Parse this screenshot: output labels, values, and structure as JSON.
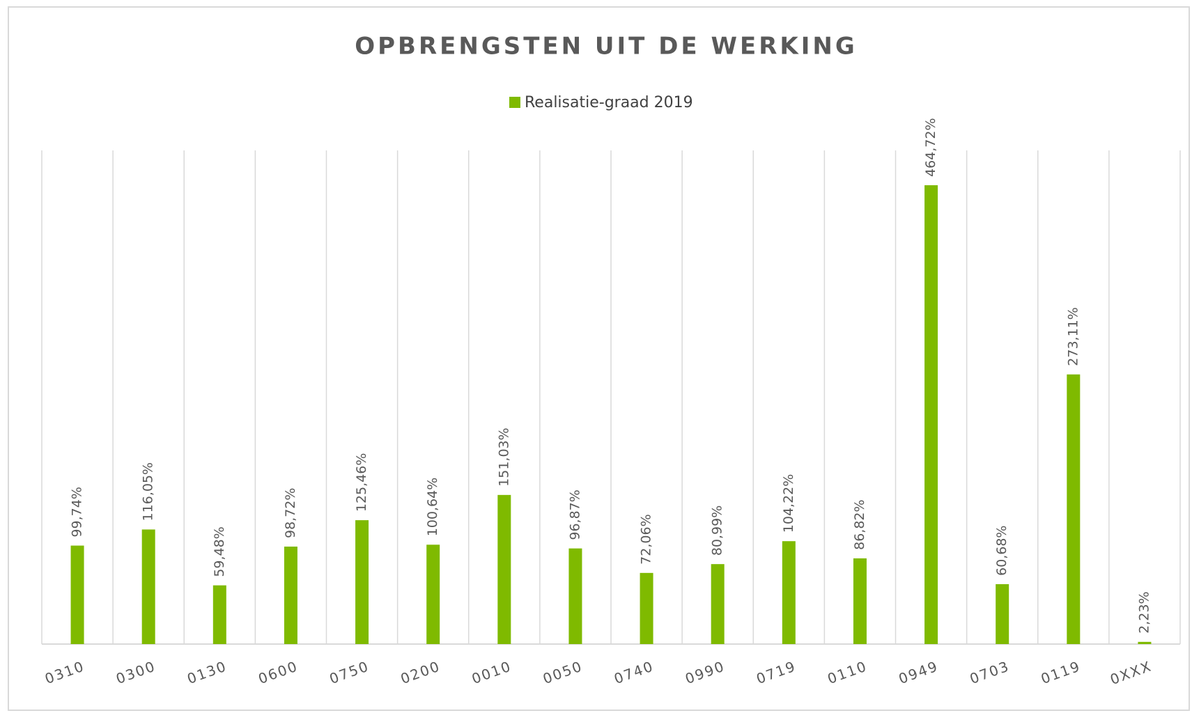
{
  "chart_data": {
    "type": "bar",
    "title": "OPBRENGSTEN UIT DE WERKING",
    "categories": [
      "0310",
      "0300",
      "0130",
      "0600",
      "0750",
      "0200",
      "0010",
      "0050",
      "0740",
      "0990",
      "0719",
      "0110",
      "0949",
      "0703",
      "0119",
      "0XXX"
    ],
    "series": [
      {
        "name": "Realisatie-graad 2019",
        "color": "#7fba00",
        "values": [
          99.74,
          116.05,
          59.48,
          98.72,
          125.46,
          100.64,
          151.03,
          96.87,
          72.06,
          80.99,
          104.22,
          86.82,
          464.72,
          60.68,
          273.11,
          2.23
        ],
        "value_labels": [
          "99,74%",
          "116,05%",
          "59,48%",
          "98,72%",
          "125,46%",
          "100,64%",
          "151,03%",
          "96,87%",
          "72,06%",
          "80,99%",
          "104,22%",
          "86,82%",
          "464,72%",
          "60,68%",
          "273,11%",
          "2,23%"
        ]
      }
    ],
    "ylim": [
      0,
      500
    ],
    "grid": true
  }
}
